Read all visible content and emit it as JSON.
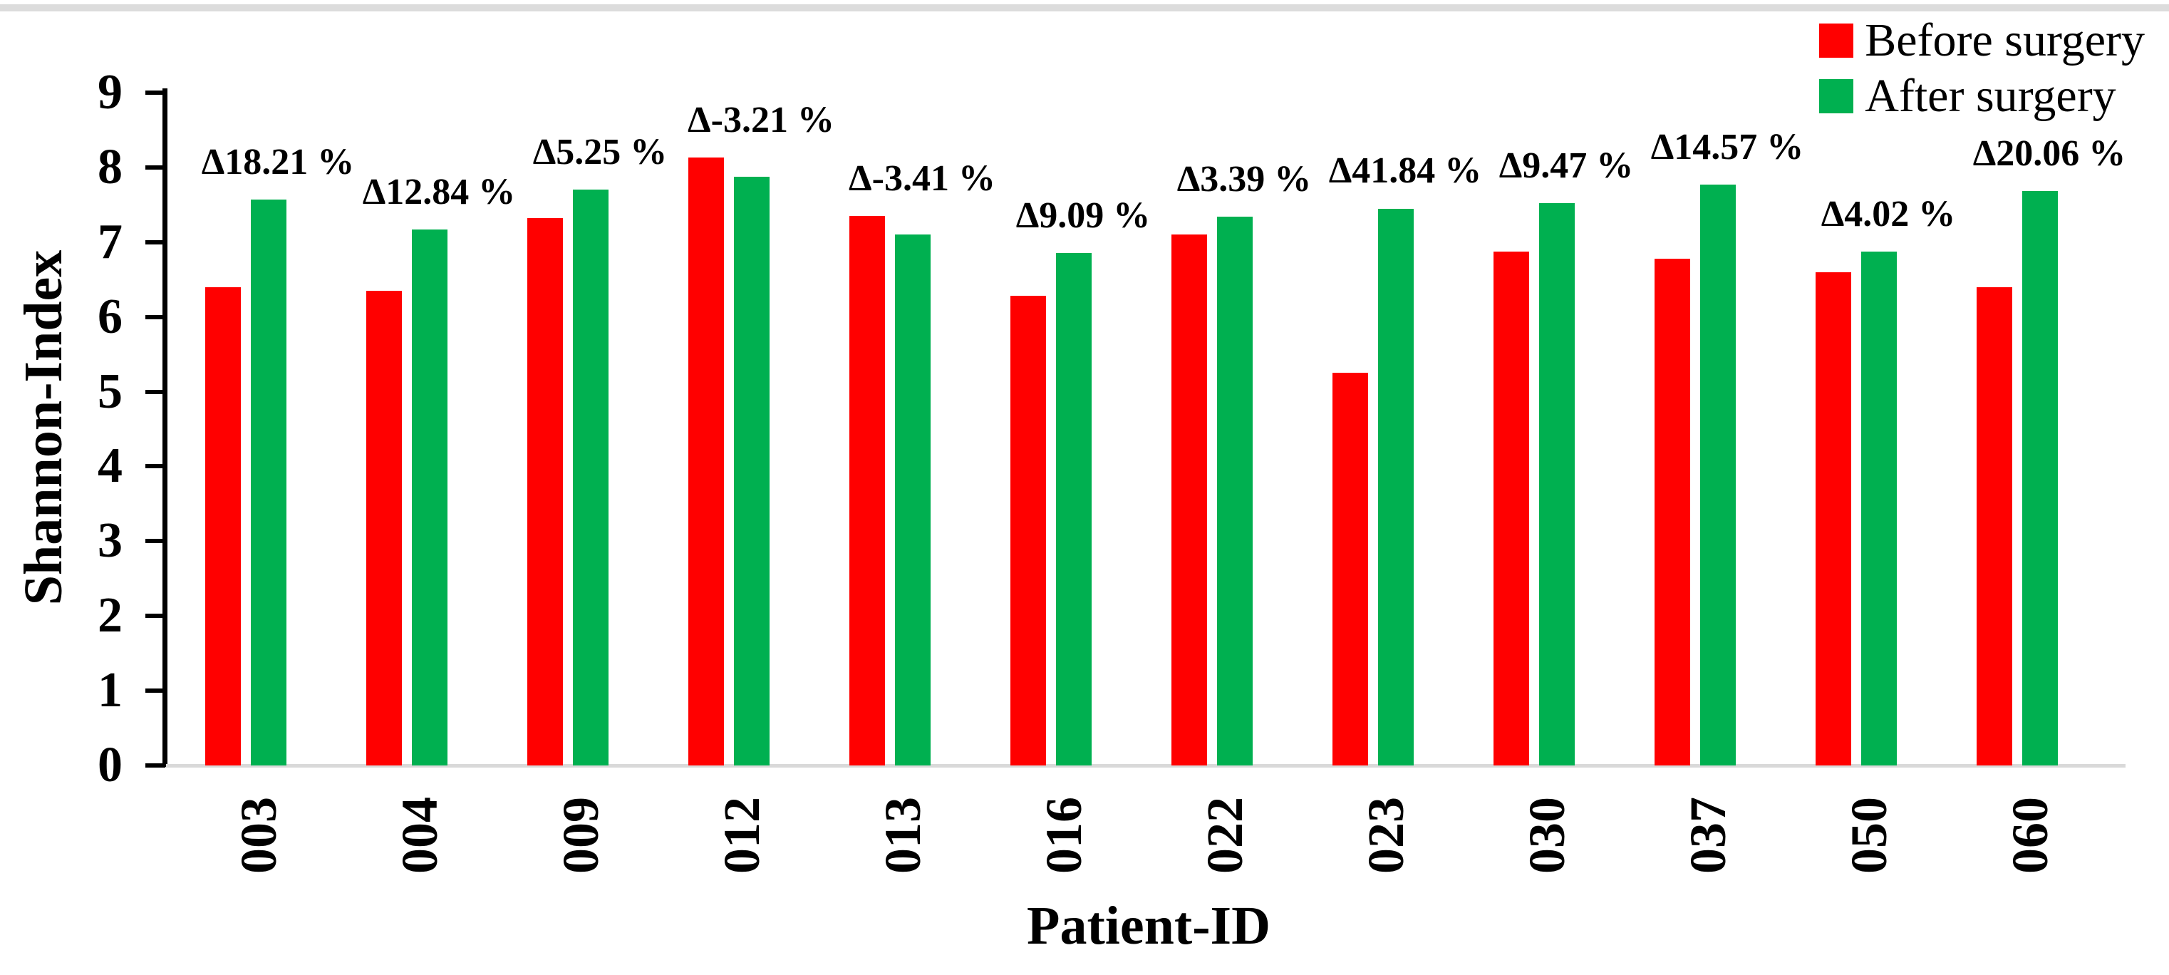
{
  "chart_data": {
    "type": "bar",
    "title": "",
    "xlabel": "Patient-ID",
    "ylabel": "Shannon-Index",
    "ylim": [
      0,
      9
    ],
    "yticks": [
      0,
      1,
      2,
      3,
      4,
      5,
      6,
      7,
      8,
      9
    ],
    "grid": false,
    "legend_position": "top-right",
    "categories": [
      "003",
      "004",
      "009",
      "012",
      "013",
      "016",
      "022",
      "023",
      "030",
      "037",
      "050",
      "060"
    ],
    "series": [
      {
        "name": "Before surgery",
        "color": "#ff0000",
        "values": [
          6.4,
          6.35,
          7.32,
          8.13,
          7.35,
          6.28,
          7.1,
          5.25,
          6.87,
          6.78,
          6.6,
          6.4
        ]
      },
      {
        "name": "After surgery",
        "color": "#00b050",
        "values": [
          7.57,
          7.17,
          7.7,
          7.87,
          7.1,
          6.85,
          7.34,
          7.45,
          7.52,
          7.77,
          6.87,
          7.68
        ]
      }
    ],
    "annotations": [
      "Δ18.21 %",
      "Δ12.84 %",
      "Δ5.25 %",
      "Δ-3.21 %",
      "Δ-3.41 %",
      "Δ9.09 %",
      "Δ3.39 %",
      "Δ41.84 %",
      "Δ9.47 %",
      "Δ14.57 %",
      "Δ4.02 %",
      "Δ20.06 %"
    ],
    "axis_color": "#000000",
    "baseline_color": "#d9d9d9"
  }
}
